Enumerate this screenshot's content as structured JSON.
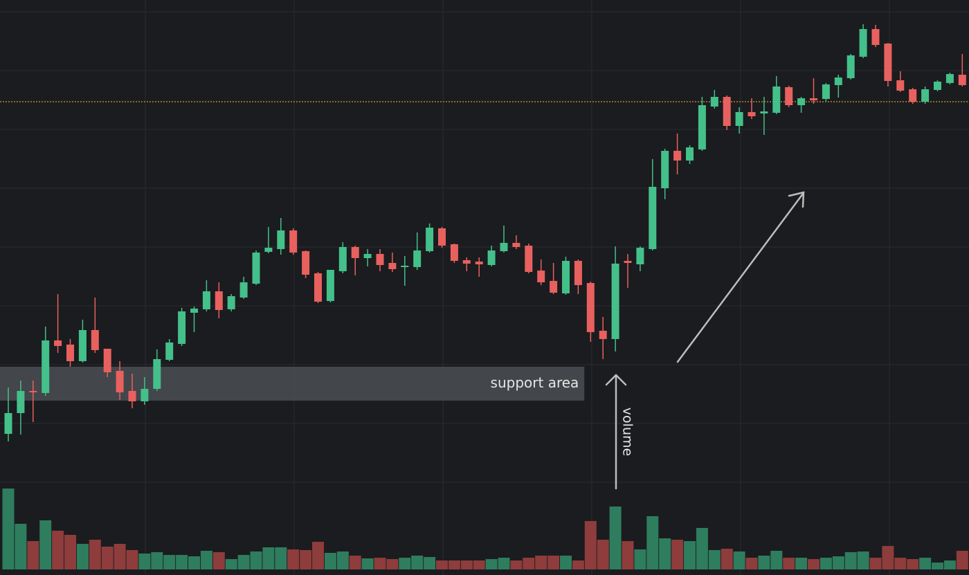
{
  "chart_data": {
    "type": "candlestick",
    "ylim": [
      0,
      831
    ],
    "volume_lim": [
      0,
      130
    ],
    "up_color": "#44c08a",
    "down_color": "#e8615f",
    "volume_up_color": "#2e7d5e",
    "volume_down_color": "#8e3c3c",
    "reference_line": {
      "value": 684,
      "color": "#c9a23a"
    },
    "support_area": {
      "label": "support area",
      "range": [
        252,
        301
      ]
    },
    "annotations": [
      "volume"
    ],
    "open": [
      204,
      234,
      266,
      263,
      339,
      333,
      309,
      354,
      327,
      295,
      266,
      251,
      269,
      311,
      334,
      379,
      384,
      410,
      384,
      401,
      421,
      467,
      471,
      498,
      468,
      436,
      396,
      439,
      474,
      458,
      464,
      451,
      445,
      445,
      468,
      501,
      478,
      455,
      453,
      448,
      468,
      480,
      476,
      440,
      425,
      407,
      454,
      422,
      353,
      341,
      454,
      449,
      471,
      559,
      613,
      599,
      615,
      677,
      691,
      649,
      669,
      667,
      668,
      705,
      679,
      689,
      688,
      708,
      718,
      749,
      789,
      768,
      715,
      702,
      684,
      701,
      711,
      723
    ],
    "high": [
      271,
      281,
      281,
      359,
      406,
      341,
      369,
      401,
      327,
      309,
      291,
      286,
      326,
      341,
      386,
      388,
      426,
      423,
      406,
      431,
      469,
      503,
      516,
      501,
      469,
      438,
      441,
      481,
      476,
      471,
      471,
      466,
      461,
      495,
      508,
      503,
      479,
      459,
      459,
      476,
      505,
      491,
      479,
      456,
      451,
      460,
      456,
      424,
      373,
      475,
      464,
      475,
      601,
      616,
      638,
      621,
      691,
      701,
      693,
      676,
      689,
      691,
      721,
      707,
      691,
      718,
      711,
      723,
      753,
      796,
      795,
      769,
      728,
      704,
      706,
      715,
      726,
      753
    ],
    "low": [
      193,
      203,
      221,
      259,
      321,
      301,
      307,
      321,
      286,
      253,
      241,
      246,
      266,
      309,
      331,
      351,
      381,
      371,
      381,
      399,
      419,
      465,
      463,
      463,
      429,
      393,
      394,
      436,
      433,
      446,
      439,
      438,
      418,
      441,
      466,
      473,
      451,
      439,
      431,
      446,
      466,
      471,
      436,
      419,
      406,
      405,
      406,
      337,
      312,
      323,
      415,
      439,
      469,
      543,
      579,
      594,
      613,
      674,
      643,
      638,
      659,
      636,
      666,
      676,
      668,
      681,
      685,
      690,
      716,
      747,
      763,
      706,
      698,
      681,
      681,
      699,
      709,
      706
    ],
    "close": [
      234,
      266,
      264,
      339,
      331,
      309,
      354,
      325,
      293,
      264,
      251,
      269,
      312,
      336,
      381,
      385,
      410,
      383,
      403,
      423,
      466,
      473,
      498,
      466,
      434,
      395,
      441,
      474,
      458,
      464,
      448,
      442,
      447,
      469,
      502,
      476,
      454,
      450,
      449,
      469,
      480,
      474,
      438,
      423,
      408,
      454,
      419,
      351,
      341,
      450,
      451,
      473,
      561,
      613,
      599,
      618,
      679,
      691,
      649,
      669,
      663,
      670,
      706,
      679,
      689,
      686,
      709,
      719,
      751,
      789,
      766,
      714,
      700,
      684,
      702,
      713,
      724,
      708
    ],
    "volume": [
      117,
      66,
      41,
      71,
      56,
      50,
      37,
      43,
      33,
      37,
      28,
      23,
      25,
      21,
      21,
      19,
      27,
      25,
      15,
      21,
      26,
      32,
      32,
      29,
      28,
      40,
      24,
      26,
      20,
      16,
      17,
      15,
      17,
      20,
      18,
      13,
      13,
      13,
      13,
      15,
      17,
      13,
      17,
      20,
      20,
      20,
      13,
      70,
      43,
      91,
      41,
      29,
      77,
      45,
      43,
      41,
      60,
      28,
      30,
      26,
      17,
      20,
      27,
      17,
      17,
      15,
      17,
      19,
      25,
      26,
      17,
      34,
      17,
      15,
      17,
      10,
      13,
      27
    ]
  }
}
